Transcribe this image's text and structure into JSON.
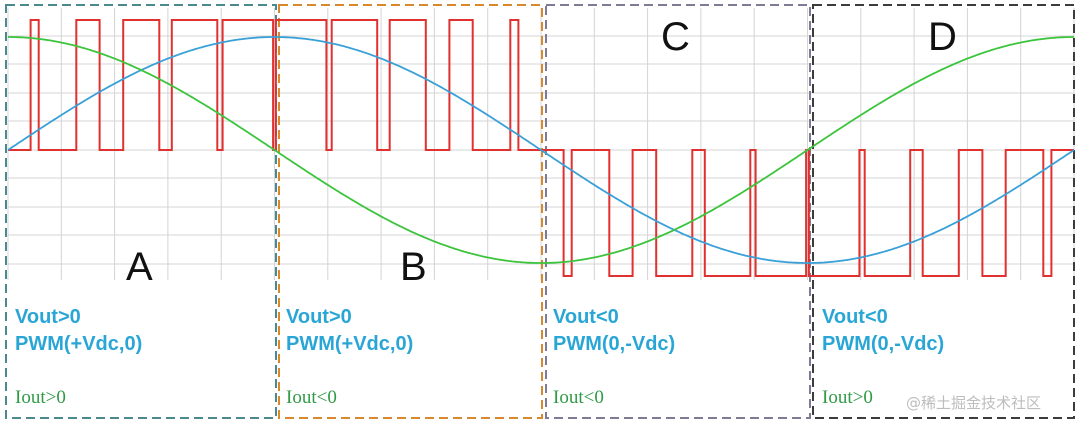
{
  "colors": {
    "pwm_line": "#e03030",
    "blue_wave": "#3aa0d8",
    "green_wave": "#3cc43c",
    "grid": "#d4d4d4",
    "text_blue": "#2aa6d6",
    "text_green": "#2f9a46"
  },
  "regions": [
    {
      "letter": "A",
      "vout": "Vout>0",
      "pwm": "PWM(+Vdc,0)",
      "iout": "Iout>0",
      "border_color": "#4a8a8e"
    },
    {
      "letter": "B",
      "vout": "Vout>0",
      "pwm": "PWM(+Vdc,0)",
      "iout": "Iout<0",
      "border_color": "#d8892e"
    },
    {
      "letter": "C",
      "vout": "Vout<0",
      "pwm": "PWM(0,-Vdc)",
      "iout": "Iout<0",
      "border_color": "#7c7c96"
    },
    {
      "letter": "D",
      "vout": "Vout<0",
      "pwm": "PWM(0,-Vdc)",
      "iout": "Iout>0",
      "border_color": "#3c3c3c"
    }
  ],
  "watermark": "@稀土掘金技术社区"
}
